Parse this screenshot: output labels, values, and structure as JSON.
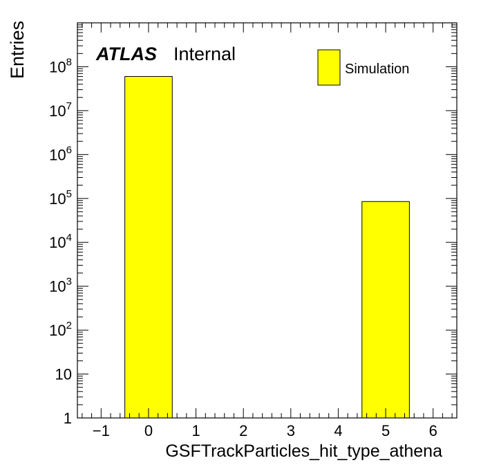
{
  "chart_data": {
    "type": "bar",
    "style": "histogram",
    "xlabel": "GSFTrackParticles_hit_type_athena",
    "ylabel": "Entries",
    "xlim": [
      -1.5,
      6.5
    ],
    "ylim": [
      1,
      1000000000
    ],
    "yscale": "log",
    "bins": [
      {
        "low": -0.5,
        "high": 0.5,
        "value": 60000000
      },
      {
        "low": 4.5,
        "high": 5.5,
        "value": 85000
      }
    ],
    "x_tick_labels": [
      "−1",
      "0",
      "1",
      "2",
      "3",
      "4",
      "5",
      "6"
    ],
    "x_tick_values": [
      -1,
      0,
      1,
      2,
      3,
      4,
      5,
      6
    ],
    "y_tick_labels": [
      {
        "base": "1",
        "exp": ""
      },
      {
        "base": "10",
        "exp": ""
      },
      {
        "base": "10",
        "exp": "2"
      },
      {
        "base": "10",
        "exp": "3"
      },
      {
        "base": "10",
        "exp": "4"
      },
      {
        "base": "10",
        "exp": "5"
      },
      {
        "base": "10",
        "exp": "6"
      },
      {
        "base": "10",
        "exp": "7"
      },
      {
        "base": "10",
        "exp": "8"
      }
    ],
    "y_tick_values": [
      1,
      10,
      100,
      1000,
      10000,
      100000,
      1000000,
      10000000,
      100000000
    ],
    "legend": {
      "label": "Simulation",
      "position": "top-right"
    },
    "atlas_label": {
      "bold": "ATLAS",
      "text": "Internal"
    },
    "fill_color": "#ffff00",
    "grid": false
  }
}
